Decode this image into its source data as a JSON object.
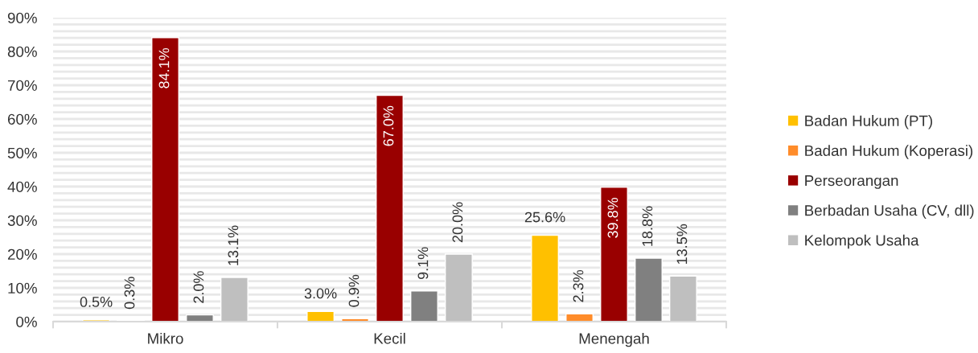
{
  "chart_data": {
    "type": "bar",
    "categories": [
      "Mikro",
      "Kecil",
      "Menengah"
    ],
    "series": [
      {
        "name": "Badan Hukum (PT)",
        "color": "#ffc000",
        "values": [
          0.5,
          3.0,
          25.6
        ],
        "value_labels": [
          "0.5%",
          "3.0%",
          "25.6%"
        ]
      },
      {
        "name": "Badan Hukum (Koperasi)",
        "color": "#ff8c2a",
        "values": [
          0.3,
          0.9,
          2.3
        ],
        "value_labels": [
          "0.3%",
          "0.9%",
          "2.3%"
        ]
      },
      {
        "name": "Perseorangan",
        "color": "#990000",
        "values": [
          84.1,
          67.0,
          39.8
        ],
        "value_labels": [
          "84.1%",
          "67.0%",
          "39.8%"
        ]
      },
      {
        "name": "Berbadan Usaha (CV, dll)",
        "color": "#808080",
        "values": [
          2.0,
          9.1,
          18.8
        ],
        "value_labels": [
          "2.0%",
          "9.1%",
          "18.8%"
        ]
      },
      {
        "name": "Kelompok Usaha",
        "color": "#bfbfbf",
        "values": [
          13.1,
          20.0,
          13.5
        ],
        "value_labels": [
          "13.1%",
          "20.0%",
          "13.5%"
        ]
      }
    ],
    "ylim": [
      0,
      90
    ],
    "yticks": [
      {
        "value": 0,
        "label": "0%"
      },
      {
        "value": 2,
        "label": null
      },
      {
        "value": 4,
        "label": null
      },
      {
        "value": 6,
        "label": null
      },
      {
        "value": 8,
        "label": null
      },
      {
        "value": 10,
        "label": "10%"
      },
      {
        "value": 12,
        "label": null
      },
      {
        "value": 14,
        "label": null
      },
      {
        "value": 16,
        "label": null
      },
      {
        "value": 18,
        "label": null
      },
      {
        "value": 20,
        "label": "20%"
      },
      {
        "value": 22,
        "label": null
      },
      {
        "value": 24,
        "label": null
      },
      {
        "value": 26,
        "label": null
      },
      {
        "value": 28,
        "label": null
      },
      {
        "value": 30,
        "label": "30%"
      },
      {
        "value": 32,
        "label": null
      },
      {
        "value": 34,
        "label": null
      },
      {
        "value": 36,
        "label": null
      },
      {
        "value": 38,
        "label": null
      },
      {
        "value": 40,
        "label": "40%"
      },
      {
        "value": 42,
        "label": null
      },
      {
        "value": 44,
        "label": null
      },
      {
        "value": 46,
        "label": null
      },
      {
        "value": 48,
        "label": null
      },
      {
        "value": 50,
        "label": "50%"
      },
      {
        "value": 52,
        "label": null
      },
      {
        "value": 54,
        "label": null
      },
      {
        "value": 56,
        "label": null
      },
      {
        "value": 58,
        "label": null
      },
      {
        "value": 60,
        "label": "60%"
      },
      {
        "value": 62,
        "label": null
      },
      {
        "value": 64,
        "label": null
      },
      {
        "value": 66,
        "label": null
      },
      {
        "value": 68,
        "label": null
      },
      {
        "value": 70,
        "label": "70%"
      },
      {
        "value": 72,
        "label": null
      },
      {
        "value": 74,
        "label": null
      },
      {
        "value": 76,
        "label": null
      },
      {
        "value": 78,
        "label": null
      },
      {
        "value": 80,
        "label": "80%"
      },
      {
        "value": 82,
        "label": null
      },
      {
        "value": 84,
        "label": null
      },
      {
        "value": 86,
        "label": null
      },
      {
        "value": 88,
        "label": null
      },
      {
        "value": 90,
        "label": "90%"
      }
    ],
    "grid": "y",
    "legend": "right"
  }
}
